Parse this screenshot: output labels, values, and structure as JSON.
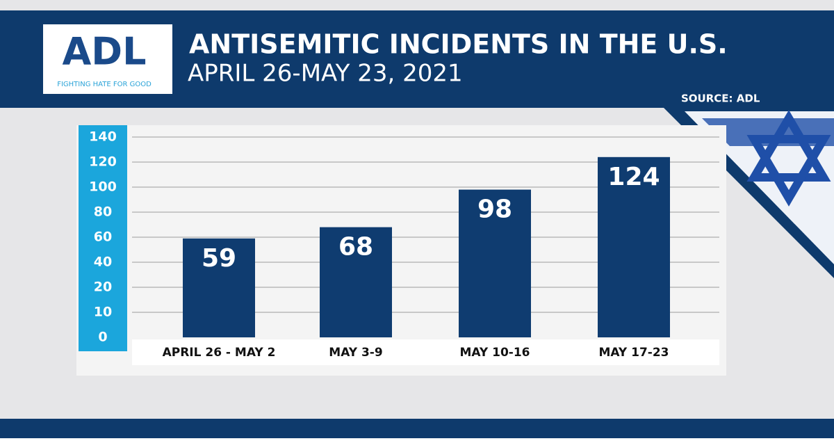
{
  "chart_data": {
    "type": "bar",
    "title": "ANTISEMITIC INCIDENTS IN THE U.S.",
    "subtitle": "APRIL 26-MAY 23, 2021",
    "source": "SOURCE: ADL",
    "logo": "ADL",
    "logo_tagline": "FIGHTING HATE FOR GOOD",
    "categories": [
      "APRIL 26 - MAY 2",
      "MAY 3-9",
      "MAY 10-16",
      "MAY 17-23"
    ],
    "values": [
      59,
      68,
      98,
      124
    ],
    "color": "#0f3c70",
    "ylim": [
      0,
      140
    ],
    "yticks": [
      0,
      10,
      20,
      40,
      60,
      80,
      100,
      120,
      140
    ],
    "grid": true
  }
}
